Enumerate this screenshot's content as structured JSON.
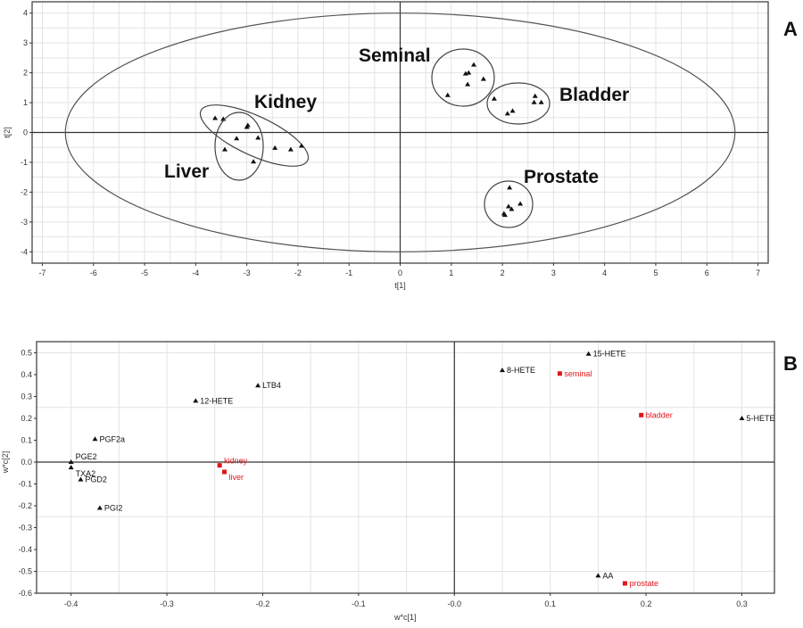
{
  "chart_data": [
    {
      "panel": "A",
      "type": "scatter",
      "xlabel": "t[1]",
      "ylabel": "t[2]",
      "xlim": [
        -7.2,
        7.2
      ],
      "ylim": [
        -4.38,
        4.38
      ],
      "xticks": [
        -7,
        -6,
        -5,
        -4,
        -3,
        -2,
        -1,
        0,
        1,
        2,
        3,
        4,
        5,
        6,
        7
      ],
      "yticks": [
        -4,
        -3,
        -2,
        -1,
        0,
        1,
        2,
        3,
        4
      ],
      "grid": true,
      "marker": "triangle",
      "hotelling_ellipse": {
        "rx": 6.55,
        "ry": 4.0
      },
      "groups": [
        {
          "label": "Kidney",
          "points": [
            [
              -3.62,
              0.48
            ],
            [
              -3.46,
              0.45
            ],
            [
              -2.98,
              0.24
            ],
            [
              -2.45,
              -0.52
            ],
            [
              -2.14,
              -0.57
            ],
            [
              -1.93,
              -0.45
            ]
          ]
        },
        {
          "label": "Liver",
          "points": [
            [
              -3.0,
              0.18
            ],
            [
              -3.2,
              -0.2
            ],
            [
              -2.78,
              -0.18
            ],
            [
              -3.43,
              -0.57
            ],
            [
              -2.87,
              -0.98
            ]
          ]
        },
        {
          "label": "Seminal",
          "points": [
            [
              1.44,
              2.27
            ],
            [
              1.28,
              1.97
            ],
            [
              1.34,
              2.0
            ],
            [
              1.63,
              1.79
            ],
            [
              1.32,
              1.61
            ],
            [
              0.93,
              1.25
            ]
          ]
        },
        {
          "label": "Bladder",
          "points": [
            [
              1.84,
              1.13
            ],
            [
              2.64,
              1.22
            ],
            [
              2.62,
              1.01
            ],
            [
              2.76,
              1.01
            ],
            [
              2.1,
              0.63
            ],
            [
              2.2,
              0.72
            ]
          ]
        },
        {
          "label": "Prostate",
          "points": [
            [
              2.14,
              -1.85
            ],
            [
              2.35,
              -2.39
            ],
            [
              2.12,
              -2.48
            ],
            [
              2.18,
              -2.57
            ],
            [
              2.03,
              -2.72
            ],
            [
              2.05,
              -2.77
            ]
          ]
        }
      ]
    },
    {
      "panel": "B",
      "type": "scatter",
      "xlabel": "w*c[1]",
      "ylabel": "w*c[2]",
      "xlim": [
        -0.436,
        0.334
      ],
      "ylim": [
        -0.6,
        0.551
      ],
      "xticks": [
        -0.4,
        -0.3,
        -0.2,
        -0.1,
        0.0,
        0.1,
        0.2,
        0.3
      ],
      "xtick_labels": [
        "-0.4",
        "-0.3",
        "-0.2",
        "-0.1",
        "-0.0",
        "0.1",
        "0.2",
        "0.3"
      ],
      "yticks": [
        0.5,
        0.4,
        0.3,
        0.2,
        0.1,
        0.0,
        -0.1,
        -0.2,
        -0.3,
        -0.4,
        -0.5,
        -0.6
      ],
      "ytick_labels": [
        "0.5",
        "0.4",
        "0.3",
        "0.2",
        "0.1",
        "0.0",
        "-0.1",
        "-0.2",
        "-0.3",
        "-0.4",
        "-0.5",
        "-0.6"
      ],
      "grid": true,
      "colors": {
        "variable": "#111111",
        "class": "#e0161b"
      },
      "points": [
        {
          "label": "15-HETE",
          "x": 0.14,
          "y": 0.495,
          "kind": "variable"
        },
        {
          "label": "8-HETE",
          "x": 0.05,
          "y": 0.42,
          "kind": "variable"
        },
        {
          "label": "seminal",
          "x": 0.11,
          "y": 0.405,
          "kind": "class"
        },
        {
          "label": "bladder",
          "x": 0.195,
          "y": 0.215,
          "kind": "class"
        },
        {
          "label": "5-HETE",
          "x": 0.3,
          "y": 0.2,
          "kind": "variable"
        },
        {
          "label": "AA",
          "x": 0.15,
          "y": -0.52,
          "kind": "variable"
        },
        {
          "label": "prostate",
          "x": 0.178,
          "y": -0.555,
          "kind": "class"
        },
        {
          "label": "LTB4",
          "x": -0.205,
          "y": 0.35,
          "kind": "variable"
        },
        {
          "label": "12-HETE",
          "x": -0.27,
          "y": 0.28,
          "kind": "variable"
        },
        {
          "label": "PGF2a",
          "x": -0.375,
          "y": 0.105,
          "kind": "variable"
        },
        {
          "label": "PGE2",
          "x": -0.4,
          "y": 0.0,
          "kind": "variable"
        },
        {
          "label": "TXA2",
          "x": -0.4,
          "y": -0.025,
          "kind": "variable"
        },
        {
          "label": "PGD2",
          "x": -0.39,
          "y": -0.08,
          "kind": "variable"
        },
        {
          "label": "PGI2",
          "x": -0.37,
          "y": -0.21,
          "kind": "variable"
        },
        {
          "label": "kidney",
          "x": -0.245,
          "y": -0.015,
          "kind": "class"
        },
        {
          "label": "liver",
          "x": -0.24,
          "y": -0.045,
          "kind": "class"
        }
      ]
    }
  ]
}
